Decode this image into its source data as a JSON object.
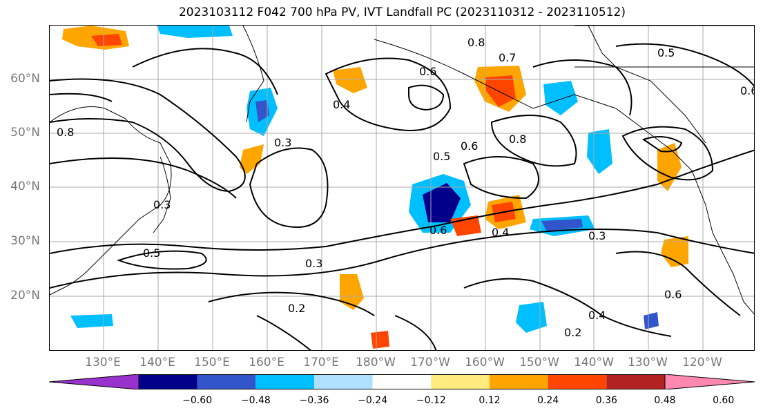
{
  "title": "2023103112 F042 700 hPa PV, IVT Landfall PC (2023110312 - 2023110512)",
  "lat_labels": [
    "60°N",
    "50°N",
    "40°N",
    "30°N",
    "20°N"
  ],
  "lon_labels": [
    "130°E",
    "140°E",
    "150°E",
    "160°E",
    "170°E",
    "180°W",
    "170°W",
    "160°W",
    "150°W",
    "140°W",
    "130°W",
    "120°W"
  ],
  "contour_labels": [
    "0.8",
    "0.7",
    "0.6",
    "0.5",
    "0.4",
    "0.3",
    "0.2"
  ],
  "colorbar": {
    "ticks": [
      "−0.60",
      "−0.48",
      "−0.36",
      "−0.24",
      "−0.12",
      "0.12",
      "0.24",
      "0.36",
      "0.48",
      "0.60"
    ],
    "colors": [
      "#9932cc",
      "#00008b",
      "#3355cc",
      "#00bfff",
      "#b0e0ff",
      "#ffffff",
      "#ffeb80",
      "#ffa500",
      "#ff4500",
      "#b22222",
      "#ff88b0"
    ]
  },
  "colors": {
    "frame": "#000000",
    "axis_label": "#777777",
    "grid": "#aaaaaa"
  }
}
